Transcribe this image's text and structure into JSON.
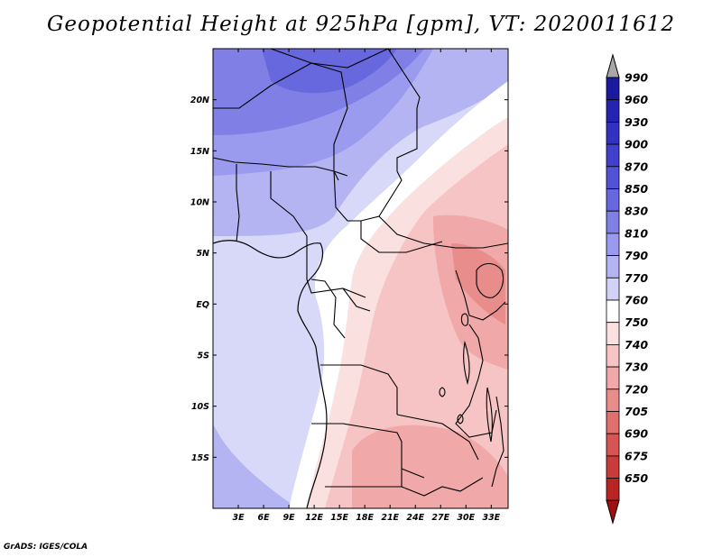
{
  "title": "Geopotential Height at 925hPa [gpm], VT: 2020011612",
  "credit": "GrADS: IGES/COLA",
  "map": {
    "lon_range": [
      0,
      35
    ],
    "lat_range": [
      -20,
      25
    ],
    "lon_ticks": [
      "3E",
      "6E",
      "9E",
      "12E",
      "15E",
      "18E",
      "21E",
      "24E",
      "27E",
      "30E",
      "33E"
    ],
    "lat_ticks": [
      "20N",
      "15N",
      "10N",
      "5N",
      "EQ",
      "5S",
      "10S",
      "15S"
    ]
  },
  "colorbar": {
    "labels": [
      "990",
      "960",
      "930",
      "900",
      "870",
      "850",
      "830",
      "810",
      "790",
      "770",
      "760",
      "750",
      "740",
      "730",
      "720",
      "705",
      "690",
      "675",
      "650"
    ],
    "colors": [
      "#1a1a9e",
      "#2424b0",
      "#3232c0",
      "#4040cc",
      "#5252d6",
      "#6868de",
      "#7f7fe6",
      "#9a9aee",
      "#b4b4f2",
      "#d2d2f8",
      "#ffffff",
      "#fbe0e0",
      "#f6c4c4",
      "#f0a8a8",
      "#e88c8c",
      "#e07070",
      "#d65656",
      "#c83c3c",
      "#b82424",
      "#a01010"
    ],
    "top_arrow_color": "#a8a8a8"
  }
}
